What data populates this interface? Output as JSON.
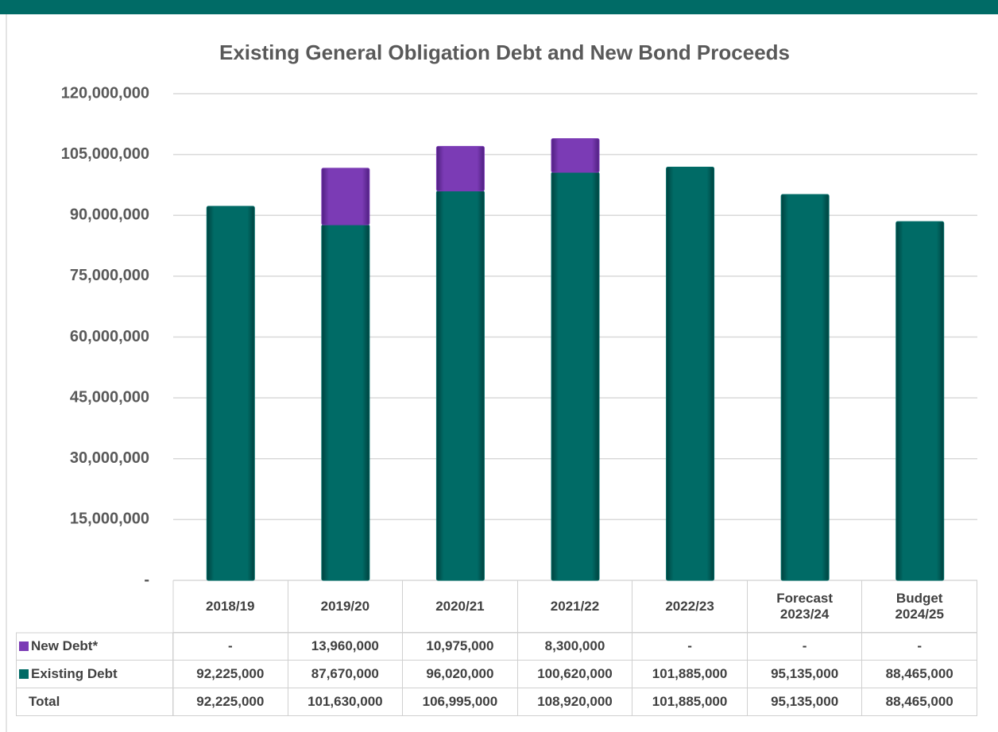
{
  "chart_data": {
    "type": "bar",
    "stacked": true,
    "title": "Existing General Obligation Debt and New Bond Proceeds",
    "categories": [
      "2018/19",
      "2019/20",
      "2020/21",
      "2021/22",
      "2022/23",
      "Forecast 2023/24",
      "Budget 2024/25"
    ],
    "series": [
      {
        "name": "Existing Debt",
        "color": "#006b66",
        "values": [
          92225000,
          87670000,
          96020000,
          100620000,
          101885000,
          95135000,
          88465000
        ],
        "value_labels": [
          "92,225,000",
          "87,670,000",
          "96,020,000",
          "100,620,000",
          "101,885,000",
          "95,135,000",
          "88,465,000"
        ]
      },
      {
        "name": "New Debt*",
        "color": "#7b3bb5",
        "values": [
          0,
          13960000,
          10975000,
          8300000,
          0,
          0,
          0
        ],
        "value_labels": [
          "-",
          "13,960,000",
          "10,975,000",
          "8,300,000",
          "-",
          "-",
          "-"
        ]
      }
    ],
    "total": {
      "name": "Total",
      "values": [
        92225000,
        101630000,
        106995000,
        108920000,
        101885000,
        95135000,
        88465000
      ],
      "value_labels": [
        "92,225,000",
        "101,630,000",
        "106,995,000",
        "108,920,000",
        "101,885,000",
        "95,135,000",
        "88,465,000"
      ]
    },
    "ylim": [
      0,
      120000000
    ],
    "yticks": [
      {
        "value": 0,
        "label": "-"
      },
      {
        "value": 15000000,
        "label": "15,000,000"
      },
      {
        "value": 30000000,
        "label": "30,000,000"
      },
      {
        "value": 45000000,
        "label": "45,000,000"
      },
      {
        "value": 60000000,
        "label": "60,000,000"
      },
      {
        "value": 75000000,
        "label": "75,000,000"
      },
      {
        "value": 90000000,
        "label": "90,000,000"
      },
      {
        "value": 105000000,
        "label": "105,000,000"
      },
      {
        "value": 120000000,
        "label": "120,000,000"
      }
    ],
    "grid": true
  }
}
